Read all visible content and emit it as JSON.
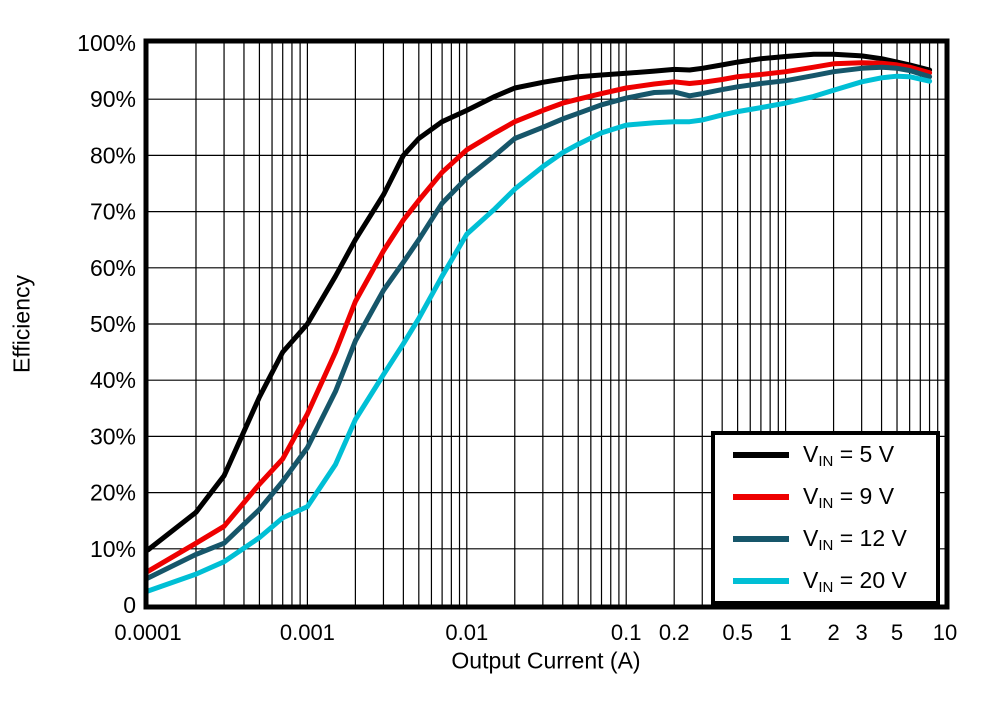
{
  "page": {
    "background": "#ffffff"
  },
  "chart_data": {
    "type": "line",
    "title": "",
    "xlabel": "Output Current (A)",
    "ylabel": "Efficiency",
    "x_scale": "log",
    "xlim": [
      0.0001,
      10
    ],
    "ylim": [
      0,
      100
    ],
    "grid": {
      "on": true,
      "color": "#000000",
      "horizontal_step_pct": 10,
      "vertical": "log decades with minor lines 2-9"
    },
    "axis_color": "#000000",
    "legend_position": "inside bottom-right",
    "x_ticks": [
      {
        "value": 0.0001,
        "label": "0.0001"
      },
      {
        "value": 0.001,
        "label": "0.001"
      },
      {
        "value": 0.01,
        "label": "0.01"
      },
      {
        "value": 0.1,
        "label": "0.1"
      },
      {
        "value": 0.2,
        "label": "0.2"
      },
      {
        "value": 0.5,
        "label": "0.5"
      },
      {
        "value": 1,
        "label": "1"
      },
      {
        "value": 2,
        "label": "2"
      },
      {
        "value": 3,
        "label": "3"
      },
      {
        "value": 5,
        "label": "5"
      },
      {
        "value": 10,
        "label": "10"
      }
    ],
    "y_ticks": [
      {
        "value": 0,
        "label": "0"
      },
      {
        "value": 10,
        "label": "10%"
      },
      {
        "value": 20,
        "label": "20%"
      },
      {
        "value": 30,
        "label": "30%"
      },
      {
        "value": 40,
        "label": "40%"
      },
      {
        "value": 50,
        "label": "50%"
      },
      {
        "value": 60,
        "label": "60%"
      },
      {
        "value": 70,
        "label": "70%"
      },
      {
        "value": 80,
        "label": "80%"
      },
      {
        "value": 90,
        "label": "90%"
      },
      {
        "value": 100,
        "label": "100%"
      }
    ],
    "x": [
      0.0001,
      0.0002,
      0.0003,
      0.0005,
      0.0007,
      0.001,
      0.0015,
      0.002,
      0.003,
      0.004,
      0.005,
      0.007,
      0.01,
      0.015,
      0.02,
      0.03,
      0.04,
      0.05,
      0.07,
      0.1,
      0.15,
      0.2,
      0.25,
      0.3,
      0.4,
      0.5,
      0.7,
      1,
      1.5,
      2,
      3,
      4,
      5,
      6,
      8
    ],
    "series": [
      {
        "name": "VIN = 5 V",
        "label_pre": "V",
        "label_sub": "IN",
        "label_post": " = 5 V",
        "color": "#000000",
        "values": [
          9.8,
          16.5,
          23,
          37,
          45,
          50,
          58.5,
          65,
          73,
          80,
          83,
          86,
          88,
          90.5,
          92,
          93,
          93.6,
          94,
          94.3,
          94.6,
          95,
          95.3,
          95.2,
          95.5,
          96.1,
          96.6,
          97.2,
          97.6,
          98,
          98,
          97.7,
          97.2,
          96.6,
          96.1,
          95.2
        ]
      },
      {
        "name": "VIN = 9 V",
        "label_pre": "V",
        "label_sub": "IN",
        "label_post": " = 9 V",
        "color": "#ee0000",
        "values": [
          6,
          11,
          14,
          21.5,
          26,
          34,
          45,
          54,
          63,
          68.5,
          72,
          77,
          81,
          84,
          86,
          88,
          89.3,
          90,
          91,
          92,
          92.7,
          93.1,
          92.8,
          93,
          93.5,
          94,
          94.4,
          94.9,
          95.7,
          96.3,
          96.5,
          96.4,
          96.1,
          95.7,
          94.7
        ]
      },
      {
        "name": "VIN = 12 V",
        "label_pre": "V",
        "label_sub": "IN",
        "label_post": " = 12 V",
        "color": "#16566a",
        "values": [
          4.8,
          9,
          11,
          17,
          22,
          28,
          38,
          47,
          56,
          61,
          65,
          71.5,
          76,
          80,
          83,
          85,
          86.5,
          87.5,
          89,
          90.2,
          91.2,
          91.3,
          90.6,
          91,
          91.7,
          92.2,
          92.8,
          93.3,
          94.2,
          94.9,
          95.5,
          95.7,
          95.5,
          95.1,
          94
        ]
      },
      {
        "name": "VIN = 20 V",
        "label_pre": "V",
        "label_sub": "IN",
        "label_post": " = 20 V",
        "color": "#00bfd5",
        "values": [
          2.5,
          5.5,
          7.7,
          12,
          15.5,
          17.5,
          25,
          33,
          41,
          46.5,
          51,
          58.5,
          66,
          70.5,
          74,
          78,
          80.5,
          82,
          84,
          85.4,
          85.8,
          86,
          86,
          86.3,
          87.2,
          87.8,
          88.5,
          89.3,
          90.5,
          91.6,
          93.1,
          93.8,
          94.1,
          94,
          93.2
        ]
      }
    ]
  }
}
